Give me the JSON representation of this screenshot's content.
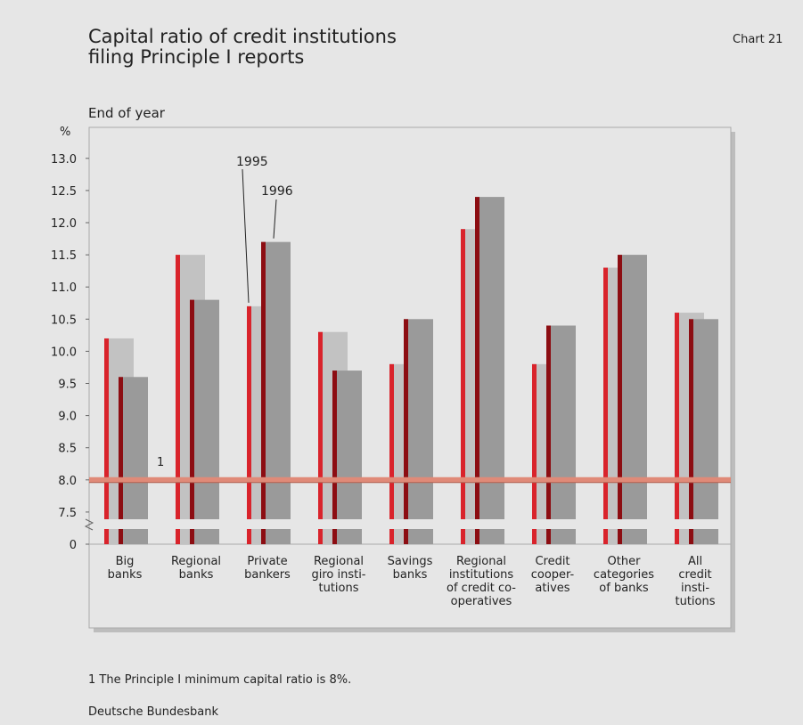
{
  "chart_data": {
    "type": "bar",
    "chart_label": "Chart 21",
    "title": "Capital ratio of credit institutions\nfiling Principle I reports",
    "subtitle": "End of year",
    "y_unit": "%",
    "categories": [
      "Big\nbanks",
      "Regional\nbanks",
      "Private\nbankers",
      "Regional\ngiro insti-\ntutions",
      "Savings\nbanks",
      "Regional\ninstitutions\nof credit co-\noperatives",
      "Credit\ncooper-\natives",
      "Other\ncategories\nof banks",
      "All\ncredit\ninsti-\ntutions"
    ],
    "series": [
      {
        "name": "1995",
        "color": "#c2c2c2",
        "stripe_color": "#d9232b",
        "values": [
          10.2,
          11.5,
          10.7,
          10.3,
          9.8,
          11.9,
          9.8,
          11.3,
          10.6
        ]
      },
      {
        "name": "1996",
        "color": "#9a9a9a",
        "stripe_color": "#8c0d12",
        "values": [
          9.6,
          10.8,
          11.7,
          9.7,
          10.5,
          12.4,
          10.4,
          11.5,
          10.5
        ]
      }
    ],
    "ylim": [
      0,
      13.4
    ],
    "axis_break": true,
    "yticks": [
      0,
      7.5,
      {
        "value": 8,
        "label": "8.0"
      },
      8.5,
      {
        "value": 9,
        "label": "9.0"
      },
      9.5,
      {
        "value": 10,
        "label": "10.0"
      },
      10.5,
      {
        "value": 11,
        "label": "11.0"
      },
      11.5,
      {
        "value": 12,
        "label": "12.0"
      },
      12.5,
      {
        "value": 13,
        "label": "13.0"
      }
    ],
    "reference_line": {
      "value": 8,
      "label": "1",
      "color": "#e08a78"
    },
    "footnote": "1 The Principle I minimum capital ratio is 8%.",
    "source": "Deutsche Bundesbank"
  }
}
